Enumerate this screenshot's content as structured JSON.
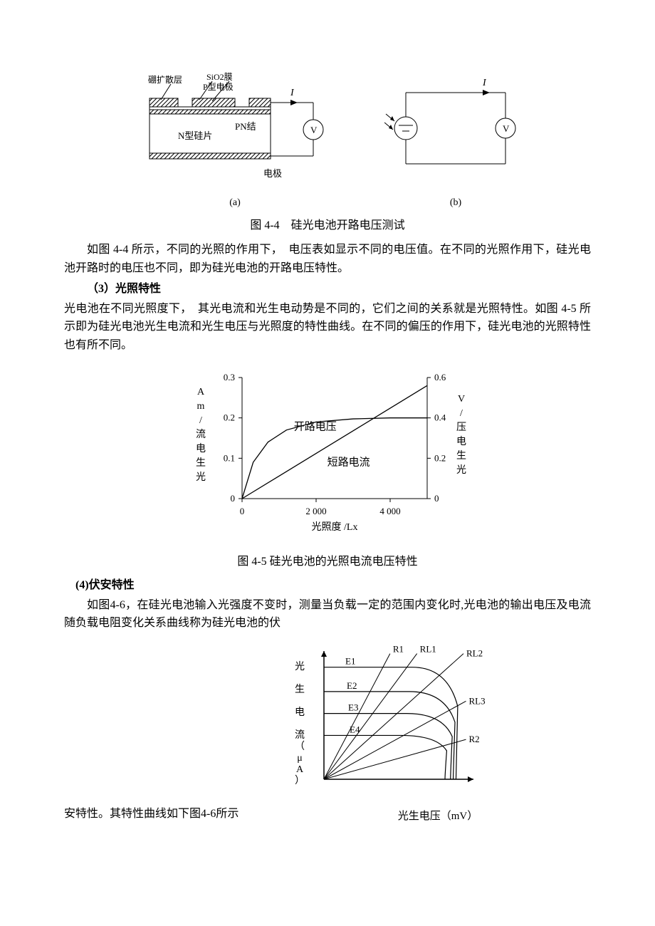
{
  "fig44": {
    "a": {
      "labels": {
        "sio2": "SiO2膜",
        "p_electrode": "P型电极",
        "boron": "硼扩散层",
        "n_silicon": "N型硅片",
        "pn": "PN结",
        "electrode": "电极",
        "current": "I",
        "meter": "V"
      },
      "sub": "(a)"
    },
    "b": {
      "labels": {
        "current": "I",
        "meter": "V"
      },
      "sub": "(b)"
    },
    "caption": "图 4-4　硅光电池开路电压测试",
    "colors": {
      "stroke": "#000000",
      "hatch": "#000000",
      "bg": "#ffffff"
    }
  },
  "para1": "如图 4-4 所示，不同的光照的作用下，　电压表如显示不同的电压值。在不同的光照作用下，硅光电池开路时的电压也不同，即为硅光电池的开路电压特性。",
  "heading3": "（3）光照特性",
  "para2": "光电池在不同光照度下，　其光电流和光生电动势是不同的，它们之间的关系就是光照特性。如图 4-5 所示即为硅光电池光生电流和光生电压与光照度的特性曲线。在不同的偏压的作用下，硅光电池的光照特性也有所不同。",
  "fig45": {
    "type": "line",
    "xlabel": "光照度  /Lx",
    "ylabel_left": "光生电流/mA",
    "ylabel_right": "光生电压/V",
    "xlim": [
      0,
      5000
    ],
    "xticks": [
      0,
      2000,
      4000
    ],
    "left": {
      "ylim": [
        0,
        0.3
      ],
      "yticks": [
        0,
        0.1,
        0.2,
        0.3
      ]
    },
    "right": {
      "ylim": [
        0,
        0.6
      ],
      "yticks": [
        0,
        0.2,
        0.4,
        0.6
      ]
    },
    "series": [
      {
        "name": "开路电压",
        "label": "开路电压",
        "axis": "right",
        "points": [
          [
            0,
            0
          ],
          [
            300,
            0.18
          ],
          [
            700,
            0.28
          ],
          [
            1200,
            0.34
          ],
          [
            2000,
            0.38
          ],
          [
            3000,
            0.395
          ],
          [
            4000,
            0.4
          ],
          [
            5000,
            0.4
          ]
        ]
      },
      {
        "name": "短路电流",
        "label": "短路电流",
        "axis": "left",
        "points": [
          [
            0,
            0
          ],
          [
            1000,
            0.056
          ],
          [
            2000,
            0.112
          ],
          [
            3000,
            0.168
          ],
          [
            4000,
            0.224
          ],
          [
            5000,
            0.28
          ]
        ]
      }
    ],
    "colors": {
      "axis": "#000000",
      "line": "#000000",
      "bg": "#ffffff"
    },
    "font": {
      "tick": 13,
      "label": 14,
      "series": 15
    },
    "caption": "图 4-5 硅光电池的光照电流电压特性"
  },
  "heading4": "(4)伏安特性",
  "para3": "如图4-6，在硅光电池输入光强度不变时，测量当负载一定的范围内变化时,光电池的输出电压及电流随负载电阻变化关系曲线称为硅光电池的伏",
  "para4": "安特性。其特性曲线如下图4-6所示",
  "fig46": {
    "type": "line",
    "xlabel": "光生电压（mV）",
    "ylabel": "光　生　电　流（μA）",
    "load_lines": [
      "R1",
      "RL1",
      "RL2",
      "RL3",
      "R2"
    ],
    "curves": [
      "E1",
      "E2",
      "E3",
      "E4"
    ],
    "colors": {
      "axis": "#000000",
      "line": "#000000"
    }
  }
}
